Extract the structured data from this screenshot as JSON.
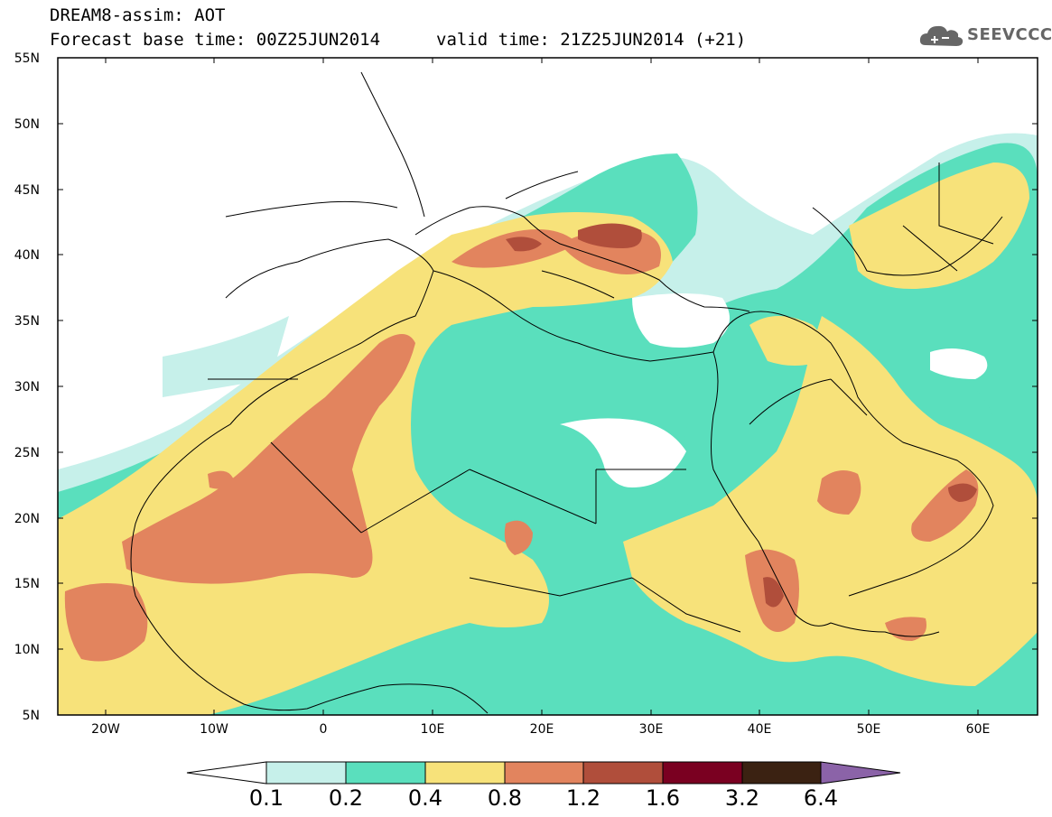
{
  "header": {
    "title": "DREAM8-assim: AOT",
    "base_time": "Forecast base time: 00Z25JUN2014",
    "valid_time": "valid time: 21Z25JUN2014 (+21)",
    "logo_text": "SEEVCCC"
  },
  "axes": {
    "lat_labels": [
      "55N",
      "50N",
      "45N",
      "40N",
      "35N",
      "30N",
      "25N",
      "20N",
      "15N",
      "10N",
      "5N"
    ],
    "lon_labels": [
      "20W",
      "10W",
      "0",
      "10E",
      "20E",
      "30E",
      "40E",
      "50E",
      "60E"
    ]
  },
  "colorbar": {
    "labels": [
      "0.1",
      "0.2",
      "0.4",
      "0.8",
      "1.2",
      "1.6",
      "3.2",
      "6.4"
    ],
    "colors": [
      "#ffffff",
      "#c6f0ea",
      "#5adfbd",
      "#f7e27a",
      "#e2845e",
      "#b04e3b",
      "#7a0021",
      "#3b2212",
      "#8b63a8"
    ]
  },
  "legend_icons": {
    "logo": "cloud-logo-icon"
  }
}
